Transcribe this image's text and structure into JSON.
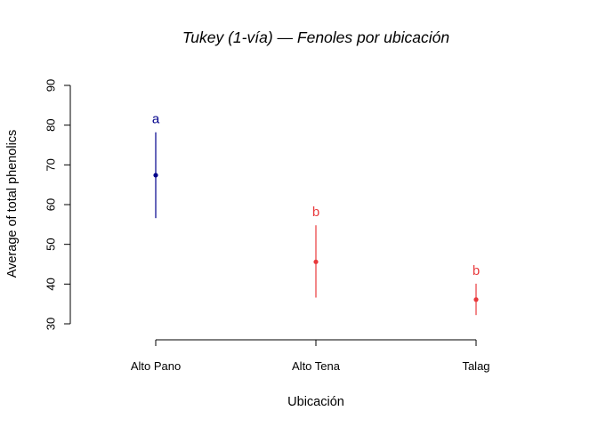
{
  "chart_data": {
    "type": "scatter",
    "title": "Tukey (1-vía) — Fenoles por ubicación",
    "xlabel": "Ubicación",
    "ylabel": "Average of total phenolics",
    "ylim": [
      30,
      90
    ],
    "yticks": [
      "30",
      "40",
      "50",
      "60",
      "70",
      "80",
      "90"
    ],
    "categories": [
      "Alto Pano",
      "Alto Tena",
      "Talag"
    ],
    "points": [
      {
        "category": "Alto Pano",
        "mean": 67.4,
        "lower": 56.6,
        "upper": 78.2,
        "group": "a",
        "color": "#00008B"
      },
      {
        "category": "Alto Tena",
        "mean": 45.6,
        "lower": 36.6,
        "upper": 54.8,
        "group": "b",
        "color": "#E8383B"
      },
      {
        "category": "Talag",
        "mean": 36.1,
        "lower": 32.2,
        "upper": 40.1,
        "group": "b",
        "color": "#E8383B"
      }
    ],
    "grid": false,
    "legend": "none"
  }
}
